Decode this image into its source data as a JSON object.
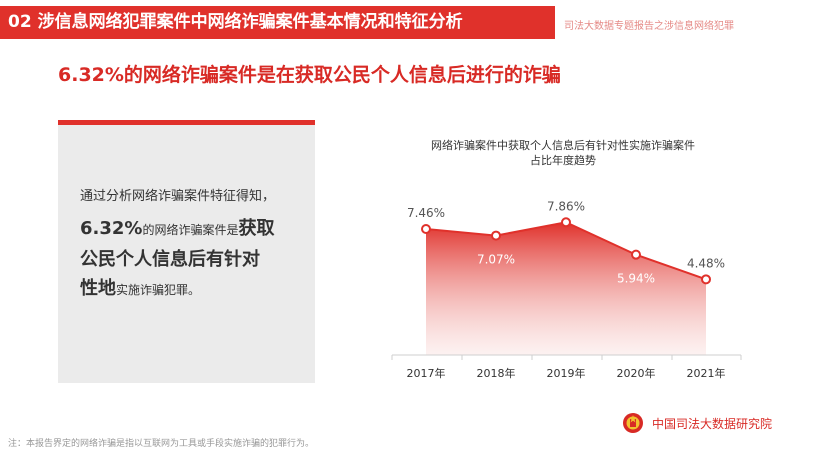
{
  "header": {
    "title": "02  涉信息网络犯罪案件中网络诈骗案件基本情况和特征分析",
    "subtitle": "司法大数据专题报告之涉信息网络犯罪"
  },
  "headline": "6.32%的网络诈骗案件是在获取公民个人信息后进行的诈骗",
  "panel": {
    "line1": "通过分析网络诈骗案件特征得知，",
    "stat": "6.32%",
    "stat_suffix": "的网络诈骗案件是",
    "bold1": "获取",
    "bold2": "公民个人信息后有针对",
    "bold3": "性地",
    "tail": "实施诈骗犯罪。"
  },
  "chart_data": {
    "type": "area",
    "title_line1": "网络诈骗案件中获取个人信息后有针对性实施诈骗案件",
    "title_line2": "占比年度趋势",
    "categories": [
      "2017年",
      "2018年",
      "2019年",
      "2020年",
      "2021年"
    ],
    "values": [
      7.46,
      7.07,
      7.86,
      5.94,
      4.48
    ],
    "labels": [
      "7.46%",
      "7.07%",
      "7.86%",
      "5.94%",
      "4.48%"
    ],
    "ylim": [
      0,
      9
    ],
    "grid": false,
    "color": "#e0312b"
  },
  "footnote": "注：本报告界定的网络诈骗是指以互联网为工具或手段实施诈骗的犯罪行为。",
  "brand": {
    "name": "中国司法大数据研究院",
    "logo_icon": "court-emblem-icon"
  }
}
